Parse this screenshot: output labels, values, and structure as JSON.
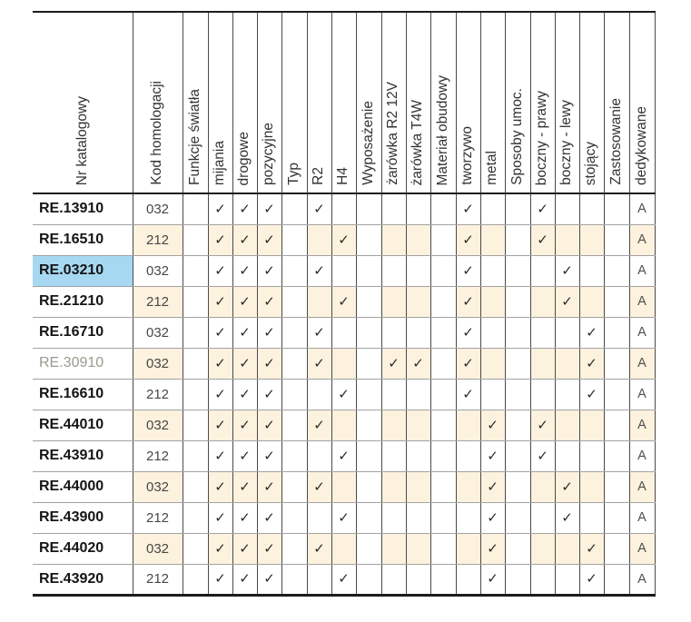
{
  "colors": {
    "shaded_row": "#fcf2de",
    "highlight_cell": "#a7d8f2",
    "border_dark": "#1c1c1c",
    "column_line": "#4a4a4a",
    "row_line": "#a2a2a2",
    "muted_catalog_number": "#9a9a8f"
  },
  "table": {
    "check_glyph": "✓",
    "columns": [
      {
        "key": "nr",
        "label": "Nr katalogowy",
        "kind": "name"
      },
      {
        "key": "kod",
        "label": "Kod homologacji",
        "kind": "code"
      },
      {
        "key": "funkcje",
        "label": "Funkcje światła",
        "kind": "group"
      },
      {
        "key": "mijania",
        "label": "mijania",
        "kind": "check"
      },
      {
        "key": "drogowe",
        "label": "drogowe",
        "kind": "check"
      },
      {
        "key": "pozycyjne",
        "label": "pozycyjne",
        "kind": "check"
      },
      {
        "key": "typ",
        "label": "Typ",
        "kind": "group"
      },
      {
        "key": "r2",
        "label": "R2",
        "kind": "check"
      },
      {
        "key": "h4",
        "label": "H4",
        "kind": "check"
      },
      {
        "key": "wyposazenie",
        "label": "Wyposażenie",
        "kind": "group"
      },
      {
        "key": "zarowka_r2_12v",
        "label": "żarówka R2 12V",
        "kind": "check"
      },
      {
        "key": "zarowka_t4w",
        "label": "żarówka T4W",
        "kind": "check"
      },
      {
        "key": "material",
        "label": "Materiał obudowy",
        "kind": "group"
      },
      {
        "key": "tworzywo",
        "label": "tworzywo",
        "kind": "check"
      },
      {
        "key": "metal",
        "label": "metal",
        "kind": "check"
      },
      {
        "key": "sposoby",
        "label": "Sposoby umoc.",
        "kind": "group"
      },
      {
        "key": "boczny_prawy",
        "label": "boczny - prawy",
        "kind": "check"
      },
      {
        "key": "boczny_lewy",
        "label": "boczny - lewy",
        "kind": "check"
      },
      {
        "key": "stojacy",
        "label": "stojący",
        "kind": "check"
      },
      {
        "key": "zastosowanie",
        "label": "Zastosowanie",
        "kind": "group"
      },
      {
        "key": "dedykowane",
        "label": "dedykowane",
        "kind": "app"
      }
    ],
    "rows": [
      {
        "nr": "RE.13910",
        "kod": "032",
        "checks": [
          "mijania",
          "drogowe",
          "pozycyjne",
          "r2",
          "tworzywo",
          "boczny_prawy"
        ],
        "dedykowane": "A",
        "nr_style": "bold",
        "nr_highlight": false
      },
      {
        "nr": "RE.16510",
        "kod": "212",
        "checks": [
          "mijania",
          "drogowe",
          "pozycyjne",
          "h4",
          "tworzywo",
          "boczny_prawy"
        ],
        "dedykowane": "A",
        "nr_style": "bold",
        "nr_highlight": false
      },
      {
        "nr": "RE.03210",
        "kod": "032",
        "checks": [
          "mijania",
          "drogowe",
          "pozycyjne",
          "r2",
          "tworzywo",
          "boczny_lewy"
        ],
        "dedykowane": "A",
        "nr_style": "bold",
        "nr_highlight": true
      },
      {
        "nr": "RE.21210",
        "kod": "212",
        "checks": [
          "mijania",
          "drogowe",
          "pozycyjne",
          "h4",
          "tworzywo",
          "boczny_lewy"
        ],
        "dedykowane": "A",
        "nr_style": "bold",
        "nr_highlight": false
      },
      {
        "nr": "RE.16710",
        "kod": "032",
        "checks": [
          "mijania",
          "drogowe",
          "pozycyjne",
          "r2",
          "tworzywo",
          "stojacy"
        ],
        "dedykowane": "A",
        "nr_style": "bold",
        "nr_highlight": false
      },
      {
        "nr": "RE.30910",
        "kod": "032",
        "checks": [
          "mijania",
          "drogowe",
          "pozycyjne",
          "r2",
          "zarowka_r2_12v",
          "zarowka_t4w",
          "tworzywo",
          "stojacy"
        ],
        "dedykowane": "A",
        "nr_style": "muted",
        "nr_highlight": false
      },
      {
        "nr": "RE.16610",
        "kod": "212",
        "checks": [
          "mijania",
          "drogowe",
          "pozycyjne",
          "h4",
          "tworzywo",
          "stojacy"
        ],
        "dedykowane": "A",
        "nr_style": "bold",
        "nr_highlight": false
      },
      {
        "nr": "RE.44010",
        "kod": "032",
        "checks": [
          "mijania",
          "drogowe",
          "pozycyjne",
          "r2",
          "metal",
          "boczny_prawy"
        ],
        "dedykowane": "A",
        "nr_style": "bold",
        "nr_highlight": false
      },
      {
        "nr": "RE.43910",
        "kod": "212",
        "checks": [
          "mijania",
          "drogowe",
          "pozycyjne",
          "h4",
          "metal",
          "boczny_prawy"
        ],
        "dedykowane": "A",
        "nr_style": "bold",
        "nr_highlight": false
      },
      {
        "nr": "RE.44000",
        "kod": "032",
        "checks": [
          "mijania",
          "drogowe",
          "pozycyjne",
          "r2",
          "metal",
          "boczny_lewy"
        ],
        "dedykowane": "A",
        "nr_style": "bold",
        "nr_highlight": false
      },
      {
        "nr": "RE.43900",
        "kod": "212",
        "checks": [
          "mijania",
          "drogowe",
          "pozycyjne",
          "h4",
          "metal",
          "boczny_lewy"
        ],
        "dedykowane": "A",
        "nr_style": "bold",
        "nr_highlight": false
      },
      {
        "nr": "RE.44020",
        "kod": "032",
        "checks": [
          "mijania",
          "drogowe",
          "pozycyjne",
          "r2",
          "metal",
          "stojacy"
        ],
        "dedykowane": "A",
        "nr_style": "bold",
        "nr_highlight": false
      },
      {
        "nr": "RE.43920",
        "kod": "212",
        "checks": [
          "mijania",
          "drogowe",
          "pozycyjne",
          "h4",
          "metal",
          "stojacy"
        ],
        "dedykowane": "A",
        "nr_style": "bold",
        "nr_highlight": false
      }
    ]
  }
}
